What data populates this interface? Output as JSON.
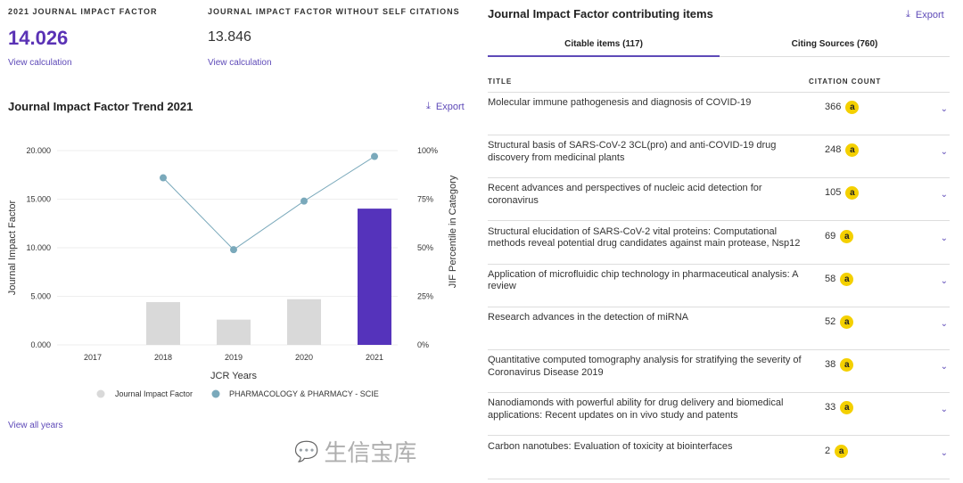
{
  "metrics": [
    {
      "label": "2021 JOURNAL IMPACT FACTOR",
      "value": "14.026",
      "link": "View calculation"
    },
    {
      "label": "JOURNAL IMPACT FACTOR WITHOUT SELF CITATIONS",
      "value": "13.846",
      "link": "View calculation"
    }
  ],
  "trend": {
    "title": "Journal Impact Factor Trend 2021",
    "export": "Export",
    "view_all": "View all years"
  },
  "chart_data": {
    "type": "bar",
    "categories": [
      "2017",
      "2018",
      "2019",
      "2020",
      "2021"
    ],
    "series": [
      {
        "name": "Journal Impact Factor",
        "type": "bar",
        "values": [
          null,
          4.4,
          2.6,
          4.7,
          14.026
        ],
        "colors": [
          "#d9d9d9",
          "#d9d9d9",
          "#d9d9d9",
          "#d9d9d9",
          "#5533bb"
        ]
      },
      {
        "name": "PHARMACOLOGY & PHARMACY - SCIE",
        "type": "line",
        "axis": "right",
        "values": [
          null,
          86,
          49,
          74,
          97
        ],
        "color": "#7aa9bb"
      }
    ],
    "xlabel": "JCR Years",
    "ylabel": "Journal Impact Factor",
    "y2label": "JIF Percentile in Category",
    "ylim": [
      0,
      20
    ],
    "y2lim": [
      0,
      100
    ],
    "yticks": [
      "0.000",
      "5.000",
      "10.000",
      "15.000",
      "20.000"
    ],
    "y2ticks": [
      "0%",
      "25%",
      "50%",
      "75%",
      "100%"
    ],
    "legend": "bottom"
  },
  "contrib": {
    "title": "Journal Impact Factor contributing items",
    "export": "Export",
    "tabs": [
      "Citable items (117)",
      "Citing Sources (760)"
    ],
    "col_title": "TITLE",
    "col_count": "CITATION COUNT",
    "rows": [
      {
        "title": "Molecular immune pathogenesis and diagnosis of COVID-19",
        "count": "366"
      },
      {
        "title": "Structural basis of SARS-CoV-2 3CL(pro) and anti-COVID-19 drug discovery from medicinal plants",
        "count": "248"
      },
      {
        "title": "Recent advances and perspectives of nucleic acid detection for coronavirus",
        "count": "105"
      },
      {
        "title": "Structural elucidation of SARS-CoV-2 vital proteins: Computational methods reveal potential drug candidates against main protease, Nsp12",
        "count": "69"
      },
      {
        "title": "Application of microfluidic chip technology in pharmaceutical analysis: A review",
        "count": "58"
      },
      {
        "title": "Research advances in the detection of miRNA",
        "count": "52"
      },
      {
        "title": "Quantitative computed tomography analysis for stratifying the severity of Coronavirus Disease 2019",
        "count": "38"
      },
      {
        "title": "Nanodiamonds with powerful ability for drug delivery and biomedical applications: Recent updates on in vivo study and patents",
        "count": "33"
      },
      {
        "title": "Carbon nanotubes: Evaluation of toxicity at biointerfaces",
        "count": "2"
      }
    ],
    "oa_glyph": "a",
    "chevron": "⌄"
  },
  "watermark": "生信宝库"
}
